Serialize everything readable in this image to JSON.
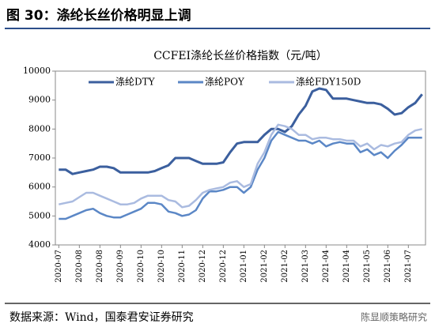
{
  "header": {
    "title": "图 30：涤纶长丝价格明显上调"
  },
  "chart_data": {
    "type": "line",
    "title": "CCFEI涤纶长丝价格指数（元/吨）",
    "categories": [
      "2020-07",
      null,
      null,
      "2020-08",
      null,
      null,
      "2020-08",
      null,
      null,
      "2020-09",
      null,
      null,
      "2020-10",
      null,
      null,
      "2020-10",
      null,
      null,
      "2020-11",
      null,
      null,
      "2020-12",
      null,
      null,
      "2020-12",
      null,
      null,
      "2021-01",
      null,
      null,
      "2021-02",
      null,
      null,
      "2021-02",
      null,
      null,
      "2021-03",
      null,
      null,
      "2021-04",
      null,
      null,
      "2021-04",
      null,
      null,
      "2021-05",
      null,
      null,
      "2021-06",
      null,
      null,
      "2021-07",
      null,
      null
    ],
    "series": [
      {
        "name": "涤纶DTY",
        "color": "#3b5f9e",
        "values": [
          6600,
          6600,
          6450,
          6500,
          6550,
          6600,
          6700,
          6700,
          6650,
          6500,
          6500,
          6500,
          6500,
          6500,
          6550,
          6650,
          6750,
          7000,
          7000,
          7000,
          6900,
          6800,
          6800,
          6800,
          6850,
          7200,
          7500,
          7550,
          7550,
          7550,
          7800,
          8000,
          8000,
          7900,
          8100,
          8500,
          8800,
          9300,
          9400,
          9350,
          9050,
          9050,
          9050,
          9000,
          8950,
          8900,
          8900,
          8850,
          8700,
          8500,
          8550,
          8750,
          8900,
          9200
        ]
      },
      {
        "name": "涤纶POY",
        "color": "#5b87c6",
        "values": [
          4900,
          4900,
          5000,
          5100,
          5200,
          5250,
          5100,
          5000,
          4950,
          4950,
          5050,
          5150,
          5250,
          5450,
          5450,
          5400,
          5150,
          5100,
          5000,
          5050,
          5200,
          5600,
          5850,
          5850,
          5900,
          6000,
          6000,
          5800,
          6000,
          6600,
          7000,
          7600,
          7900,
          7800,
          7700,
          7600,
          7600,
          7500,
          7600,
          7400,
          7500,
          7550,
          7500,
          7500,
          7200,
          7300,
          7100,
          7200,
          7000,
          7250,
          7450,
          7700,
          7700,
          7700
        ]
      },
      {
        "name": "涤纶FDY150D",
        "color": "#aabbe0",
        "values": [
          5400,
          5450,
          5500,
          5650,
          5800,
          5800,
          5700,
          5600,
          5500,
          5400,
          5400,
          5450,
          5600,
          5700,
          5700,
          5700,
          5550,
          5500,
          5300,
          5350,
          5550,
          5800,
          5900,
          5950,
          6000,
          6150,
          6200,
          6000,
          6100,
          6800,
          7200,
          7800,
          8150,
          8100,
          8000,
          7800,
          7800,
          7650,
          7700,
          7700,
          7650,
          7650,
          7600,
          7600,
          7400,
          7500,
          7300,
          7450,
          7400,
          7500,
          7550,
          7800,
          7950,
          8000
        ]
      }
    ],
    "ylim": [
      4000,
      10000
    ],
    "yticks": [
      4000,
      5000,
      6000,
      7000,
      8000,
      9000,
      10000
    ],
    "legend": "top"
  },
  "footer": {
    "source": "数据来源：Wind，国泰君安证券研究",
    "watermark": "陈显顺策略研究"
  }
}
